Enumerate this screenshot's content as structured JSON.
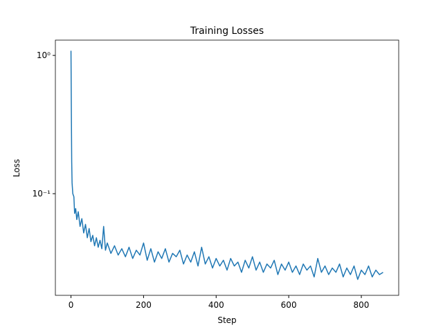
{
  "chart_data": {
    "type": "line",
    "title": "Training Losses",
    "x_label": "Step",
    "y_label": "Loss",
    "x": [
      0,
      1,
      2,
      3,
      5,
      8,
      10,
      13,
      16,
      20,
      25,
      30,
      35,
      40,
      45,
      50,
      55,
      60,
      65,
      70,
      75,
      80,
      85,
      90,
      95,
      100,
      110,
      120,
      130,
      140,
      150,
      160,
      170,
      180,
      190,
      200,
      210,
      220,
      230,
      240,
      250,
      260,
      270,
      280,
      290,
      300,
      310,
      320,
      330,
      340,
      350,
      360,
      370,
      380,
      390,
      400,
      410,
      420,
      430,
      440,
      450,
      460,
      470,
      480,
      490,
      500,
      510,
      520,
      530,
      540,
      550,
      560,
      570,
      580,
      590,
      600,
      610,
      620,
      630,
      640,
      650,
      660,
      670,
      680,
      690,
      700,
      710,
      720,
      730,
      740,
      750,
      760,
      770,
      780,
      790,
      800,
      810,
      820,
      830,
      840,
      850,
      860
    ],
    "series": [
      {
        "name": "Loss",
        "color": "#1f77b4",
        "values": [
          1.08,
          0.4,
          0.17,
          0.12,
          0.1,
          0.095,
          0.072,
          0.078,
          0.065,
          0.074,
          0.058,
          0.066,
          0.052,
          0.06,
          0.048,
          0.056,
          0.045,
          0.05,
          0.042,
          0.048,
          0.041,
          0.046,
          0.04,
          0.058,
          0.039,
          0.044,
          0.037,
          0.042,
          0.036,
          0.04,
          0.035,
          0.041,
          0.034,
          0.039,
          0.036,
          0.044,
          0.033,
          0.04,
          0.032,
          0.038,
          0.034,
          0.04,
          0.032,
          0.037,
          0.035,
          0.039,
          0.031,
          0.036,
          0.032,
          0.038,
          0.03,
          0.041,
          0.031,
          0.035,
          0.029,
          0.034,
          0.03,
          0.033,
          0.028,
          0.034,
          0.03,
          0.032,
          0.027,
          0.033,
          0.029,
          0.035,
          0.028,
          0.032,
          0.027,
          0.031,
          0.029,
          0.033,
          0.026,
          0.031,
          0.028,
          0.032,
          0.027,
          0.03,
          0.026,
          0.031,
          0.028,
          0.03,
          0.025,
          0.034,
          0.027,
          0.03,
          0.026,
          0.029,
          0.027,
          0.031,
          0.025,
          0.029,
          0.026,
          0.03,
          0.024,
          0.028,
          0.026,
          0.03,
          0.025,
          0.028,
          0.026,
          0.027
        ]
      }
    ],
    "xlim": [
      -43,
      903
    ],
    "xticks": [
      0,
      200,
      400,
      600,
      800
    ],
    "ylim": [
      0.0184,
      1.29
    ],
    "yticks": [
      {
        "value": 0.1,
        "label": "10⁻¹"
      },
      {
        "value": 1,
        "label": "10⁰"
      }
    ],
    "y_scale": "log",
    "grid": false
  }
}
